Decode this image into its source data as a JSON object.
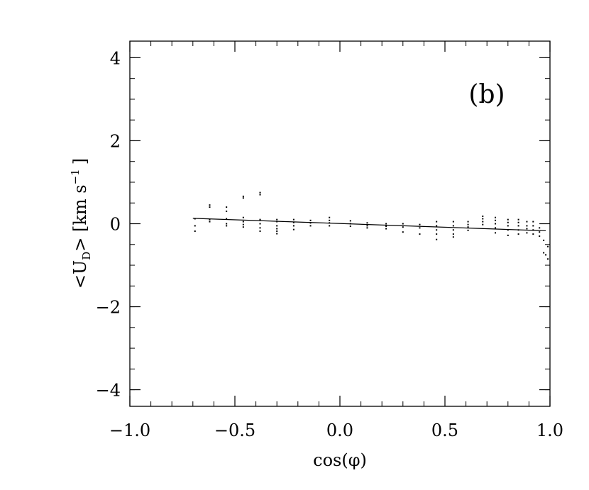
{
  "chart_data": {
    "type": "scatter",
    "title": "",
    "panel_label": "(b)",
    "xlabel": "cos(φ)",
    "ylabel": {
      "open": "<U",
      "sub": "D",
      "close": ">",
      "unit_open": "[km s",
      "unit_sup": "−1",
      "unit_close": "]"
    },
    "xlim": [
      -1.0,
      1.0
    ],
    "ylim": [
      -4.4,
      4.4
    ],
    "x_ticks": [
      {
        "value": -1.0,
        "label": "−1.0"
      },
      {
        "value": -0.5,
        "label": "−0.5"
      },
      {
        "value": 0.0,
        "label": "0.0"
      },
      {
        "value": 0.5,
        "label": "0.5"
      },
      {
        "value": 1.0,
        "label": "1.0"
      }
    ],
    "y_ticks": [
      {
        "value": -4,
        "label": "−4"
      },
      {
        "value": -2,
        "label": "−2"
      },
      {
        "value": 0,
        "label": "0"
      },
      {
        "value": 2,
        "label": "2"
      },
      {
        "value": 4,
        "label": "4"
      }
    ],
    "x_minor_step": 0.1,
    "y_minor_step": 0.5,
    "grid": false,
    "fit_line": {
      "x": [
        -0.7,
        0.98
      ],
      "y": [
        0.13,
        -0.17
      ]
    },
    "points": [
      [
        -0.69,
        0.12
      ],
      [
        -0.69,
        -0.05
      ],
      [
        -0.69,
        -0.18
      ],
      [
        -0.62,
        0.45
      ],
      [
        -0.62,
        0.4
      ],
      [
        -0.62,
        0.1
      ],
      [
        -0.62,
        0.05
      ],
      [
        -0.54,
        0.4
      ],
      [
        -0.54,
        0.3
      ],
      [
        -0.54,
        0.12
      ],
      [
        -0.54,
        0.0
      ],
      [
        -0.54,
        -0.05
      ],
      [
        -0.46,
        0.66
      ],
      [
        -0.46,
        0.62
      ],
      [
        -0.46,
        0.15
      ],
      [
        -0.46,
        0.05
      ],
      [
        -0.46,
        -0.02
      ],
      [
        -0.46,
        -0.08
      ],
      [
        -0.38,
        0.75
      ],
      [
        -0.38,
        0.7
      ],
      [
        -0.38,
        0.1
      ],
      [
        -0.38,
        0.0
      ],
      [
        -0.38,
        -0.1
      ],
      [
        -0.38,
        -0.18
      ],
      [
        -0.3,
        0.1
      ],
      [
        -0.3,
        0.05
      ],
      [
        -0.3,
        -0.05
      ],
      [
        -0.3,
        -0.12
      ],
      [
        -0.3,
        -0.18
      ],
      [
        -0.3,
        -0.24
      ],
      [
        -0.22,
        0.1
      ],
      [
        -0.22,
        0.03
      ],
      [
        -0.22,
        -0.05
      ],
      [
        -0.22,
        -0.14
      ],
      [
        -0.14,
        0.08
      ],
      [
        -0.14,
        0.02
      ],
      [
        -0.14,
        -0.05
      ],
      [
        -0.05,
        0.15
      ],
      [
        -0.05,
        0.08
      ],
      [
        -0.05,
        0.02
      ],
      [
        -0.05,
        -0.05
      ],
      [
        0.05,
        0.07
      ],
      [
        0.05,
        0.0
      ],
      [
        0.05,
        -0.06
      ],
      [
        0.13,
        0.02
      ],
      [
        0.13,
        -0.05
      ],
      [
        0.13,
        -0.1
      ],
      [
        0.22,
        0.0
      ],
      [
        0.22,
        -0.06
      ],
      [
        0.22,
        -0.12
      ],
      [
        0.3,
        0.0
      ],
      [
        0.3,
        -0.08
      ],
      [
        0.3,
        -0.2
      ],
      [
        0.38,
        -0.02
      ],
      [
        0.38,
        -0.1
      ],
      [
        0.38,
        -0.25
      ],
      [
        0.46,
        0.05
      ],
      [
        0.46,
        -0.05
      ],
      [
        0.46,
        -0.15
      ],
      [
        0.46,
        -0.25
      ],
      [
        0.46,
        -0.38
      ],
      [
        0.54,
        0.05
      ],
      [
        0.54,
        -0.05
      ],
      [
        0.54,
        -0.15
      ],
      [
        0.54,
        -0.25
      ],
      [
        0.54,
        -0.32
      ],
      [
        0.61,
        0.05
      ],
      [
        0.61,
        -0.02
      ],
      [
        0.61,
        -0.08
      ],
      [
        0.61,
        -0.16
      ],
      [
        0.68,
        0.18
      ],
      [
        0.68,
        0.12
      ],
      [
        0.68,
        0.05
      ],
      [
        0.68,
        -0.02
      ],
      [
        0.74,
        0.15
      ],
      [
        0.74,
        0.08
      ],
      [
        0.74,
        0.0
      ],
      [
        0.74,
        -0.1
      ],
      [
        0.74,
        -0.22
      ],
      [
        0.8,
        0.1
      ],
      [
        0.8,
        0.03
      ],
      [
        0.8,
        -0.05
      ],
      [
        0.8,
        -0.15
      ],
      [
        0.8,
        -0.28
      ],
      [
        0.85,
        0.1
      ],
      [
        0.85,
        0.03
      ],
      [
        0.85,
        -0.05
      ],
      [
        0.85,
        -0.15
      ],
      [
        0.85,
        -0.25
      ],
      [
        0.89,
        0.05
      ],
      [
        0.89,
        -0.05
      ],
      [
        0.89,
        -0.12
      ],
      [
        0.89,
        -0.22
      ],
      [
        0.92,
        0.05
      ],
      [
        0.92,
        -0.05
      ],
      [
        0.92,
        -0.15
      ],
      [
        0.92,
        -0.25
      ],
      [
        0.95,
        -0.1
      ],
      [
        0.95,
        -0.2
      ],
      [
        0.95,
        -0.3
      ],
      [
        0.97,
        -0.4
      ],
      [
        0.97,
        -0.7
      ],
      [
        0.98,
        -0.75
      ],
      [
        0.99,
        -0.55
      ],
      [
        0.99,
        -0.85
      ]
    ]
  }
}
